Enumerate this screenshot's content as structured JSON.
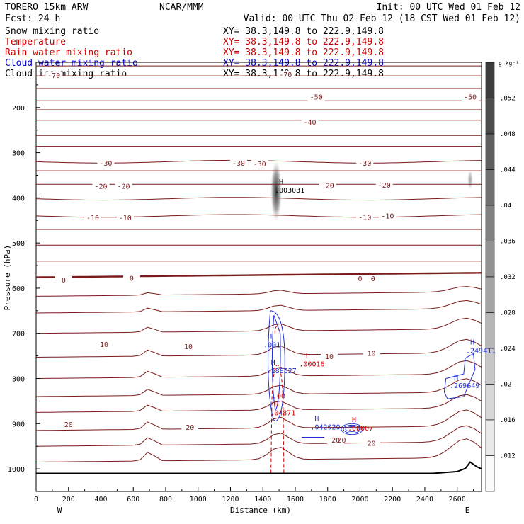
{
  "header": {
    "left1": "TORERO  15km ARW",
    "center1": "NCAR/MMM",
    "right1": "Init: 00 UTC Wed 01 Feb 12",
    "left2": "Fcst:    24 h",
    "right2": "Valid: 00 UTC Thu 02 Feb 12 (18 CST Wed 01 Feb 12)"
  },
  "fields": [
    {
      "name": "Snow mixing ratio",
      "xy": "XY=  38.3,149.8 to 222.9,149.8",
      "color": "#000000"
    },
    {
      "name": "Temperature",
      "xy": "XY=  38.3,149.8 to 222.9,149.8",
      "color": "#cc0000"
    },
    {
      "name": "Rain water mixing ratio",
      "xy": "XY=  38.3,149.8 to 222.9,149.8",
      "color": "#cc0000"
    },
    {
      "name": "Cloud water mixing ratio",
      "xy": "XY=  38.3,149.8 to 222.9,149.8",
      "color": "#0000cc"
    },
    {
      "name": "Cloud ice mixing ratio",
      "xy": "XY=  38.3,149.8 to 222.9,149.8",
      "color": "#000000"
    }
  ],
  "colors": {
    "temperature": "#7a1a1a",
    "rain": "#cc0000",
    "cloud_water": "#1f2fd0",
    "terrain": "#000000"
  },
  "chart_data": {
    "type": "cross-section",
    "xlabel": "Distance (km)",
    "ylabel": "Pressure (hPa)",
    "xlim": [
      0,
      2750
    ],
    "ylim": [
      1050,
      100
    ],
    "x_ticks": [
      0,
      200,
      400,
      600,
      800,
      1000,
      1200,
      1400,
      1600,
      1800,
      2000,
      2200,
      2400,
      2600
    ],
    "y_ticks": [
      200,
      300,
      400,
      500,
      600,
      700,
      800,
      900,
      1000
    ],
    "west_label": "W",
    "east_label": "E",
    "colorbar": {
      "unit": "g kg⁻¹",
      "ticks": [
        ".052",
        ".048",
        ".044",
        ".04",
        ".036",
        ".032",
        ".028",
        ".024",
        ".02",
        ".016",
        ".012"
      ]
    },
    "isotherms": [
      {
        "label": "-70",
        "p": 130
      },
      {
        "label": "-50",
        "p": 185
      },
      {
        "label": "-40",
        "p": 228
      },
      {
        "label": "-30",
        "p": 262
      },
      {
        "label": "-20",
        "p": 340
      },
      {
        "label": "-10",
        "p": 402
      },
      {
        "label": "0",
        "p": 576
      },
      {
        "label": "10",
        "p": 753
      },
      {
        "label": "20",
        "p": 915
      }
    ],
    "temperature_labels": [
      {
        "text": "-70",
        "x": 110,
        "p": 133
      },
      {
        "text": "-70",
        "x": 1540,
        "p": 131
      },
      {
        "text": "-50",
        "x": 1730,
        "p": 181
      },
      {
        "text": "-50",
        "x": 2680,
        "p": 181
      },
      {
        "text": "-40",
        "x": 1690,
        "p": 236
      },
      {
        "text": "-30",
        "x": 430,
        "p": 327
      },
      {
        "text": "-30",
        "x": 1250,
        "p": 327
      },
      {
        "text": "-30",
        "x": 1380,
        "p": 329
      },
      {
        "text": "-30",
        "x": 2030,
        "p": 327
      },
      {
        "text": "-20",
        "x": 400,
        "p": 378
      },
      {
        "text": "-20",
        "x": 540,
        "p": 378
      },
      {
        "text": "-20",
        "x": 1800,
        "p": 377
      },
      {
        "text": "-20",
        "x": 2150,
        "p": 376
      },
      {
        "text": "-10",
        "x": 350,
        "p": 448
      },
      {
        "text": "-10",
        "x": 550,
        "p": 448
      },
      {
        "text": "-10",
        "x": 2030,
        "p": 447
      },
      {
        "text": "-10",
        "x": 2170,
        "p": 444
      },
      {
        "text": "0",
        "x": 170,
        "p": 586
      },
      {
        "text": "0",
        "x": 590,
        "p": 582
      },
      {
        "text": "0",
        "x": 2000,
        "p": 583
      },
      {
        "text": "0",
        "x": 2080,
        "p": 583
      },
      {
        "text": "10",
        "x": 420,
        "p": 729
      },
      {
        "text": "10",
        "x": 940,
        "p": 733
      },
      {
        "text": "10",
        "x": 1810,
        "p": 755
      },
      {
        "text": "10",
        "x": 2070,
        "p": 748
      },
      {
        "text": "20",
        "x": 200,
        "p": 906
      },
      {
        "text": "20",
        "x": 950,
        "p": 912
      },
      {
        "text": "20",
        "x": 1850,
        "p": 940
      },
      {
        "text": "20",
        "x": 2070,
        "p": 947
      }
    ],
    "maxima_labels": [
      {
        "h": "H",
        "value": ".003031",
        "x": 1500,
        "p": 385,
        "color": "#000000"
      },
      {
        "h": "H",
        "value": ".00016",
        "x": 1650,
        "p": 770,
        "color": "#cc0000"
      },
      {
        "h": "H",
        "value": ".04871",
        "x": 1470,
        "p": 878,
        "color": "#cc0000"
      },
      {
        "h": "H",
        "value": ".188527",
        "x": 1450,
        "p": 785,
        "color": "#1f2fd0"
      },
      {
        "h": "H",
        "value": ".001",
        "x": 1430,
        "p": 728,
        "color": "#1f2fd0"
      },
      {
        "h": "H",
        "value": ".042020",
        "x": 1720,
        "p": 910,
        "color": "#1f2fd0"
      },
      {
        "h": "H",
        "value": ".00007",
        "x": 1950,
        "p": 912,
        "color": "#cc0000"
      },
      {
        "h": "H",
        "value": ".249411",
        "x": 2680,
        "p": 740,
        "color": "#1f2fd0"
      },
      {
        "h": "H",
        "value": ".269649",
        "x": 2580,
        "p": 818,
        "color": "#1f2fd0"
      }
    ],
    "annotations": [
      {
        "text": ".00",
        "x": 1460,
        "p": 844,
        "color": "#cc0000"
      },
      {
        "text": "20",
        "x": 1860,
        "p": 942,
        "color": "#7a1a1a"
      }
    ],
    "terrain_profile": [
      [
        0,
        1010
      ],
      [
        2450,
        1010
      ],
      [
        2600,
        1006
      ],
      [
        2650,
        999
      ],
      [
        2680,
        985
      ],
      [
        2720,
        995
      ],
      [
        2750,
        1000
      ]
    ],
    "snow_max_location": {
      "x": 1500,
      "p_range": [
        330,
        440
      ]
    }
  }
}
